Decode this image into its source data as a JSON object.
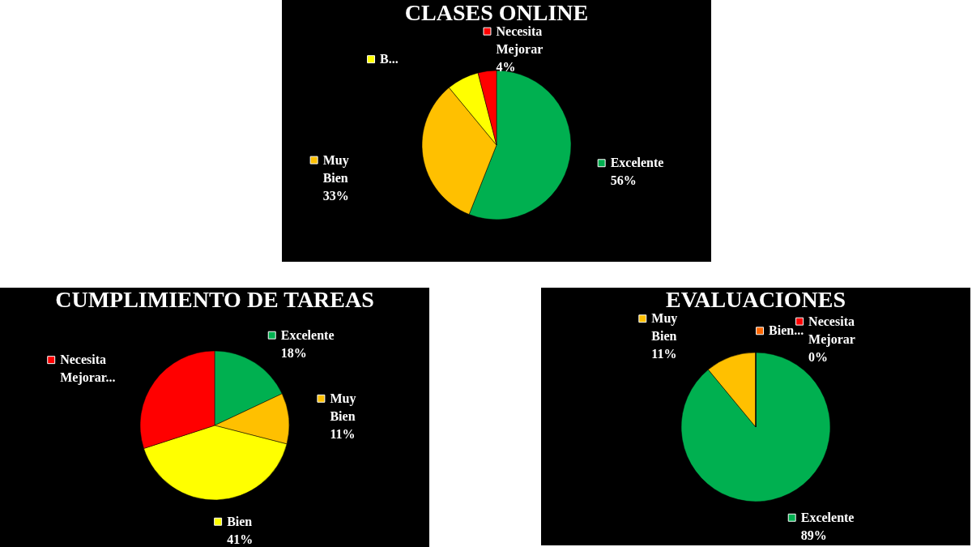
{
  "chart_data": [
    {
      "type": "pie",
      "title": "CLASES ONLINE",
      "categories": [
        "Excelente",
        "Muy Bien",
        "B...",
        "Necesita Mejorar"
      ],
      "values": [
        56,
        33,
        7,
        4
      ],
      "colors": [
        "#00b050",
        "#ffc000",
        "#ffff00",
        "#ff0000"
      ],
      "value_labels": [
        "56%",
        "33%",
        null,
        "4%"
      ],
      "legend": "top left"
    },
    {
      "type": "pie",
      "title": "CUMPLIMIENTO DE TAREAS",
      "categories": [
        "Excelente",
        "Muy Bien",
        "Bien",
        "Necesita Mejorar..."
      ],
      "values": [
        18,
        11,
        41,
        30
      ],
      "colors": [
        "#00b050",
        "#ffc000",
        "#ffff00",
        "#ff0000"
      ],
      "value_labels": [
        "18%",
        "11%",
        "41%",
        null
      ],
      "legend": "bottom left"
    },
    {
      "type": "pie",
      "title": "EVALUACIONES",
      "categories": [
        "Excelente",
        "Muy Bien",
        "Bien...",
        "Necesita Mejorar"
      ],
      "values": [
        89,
        11,
        0,
        0
      ],
      "colors": [
        "#00b050",
        "#ffc000",
        "#ff6600",
        "#ff0000"
      ],
      "value_labels": [
        "89%",
        "11%",
        null,
        "0%"
      ],
      "legend": "top left"
    }
  ]
}
